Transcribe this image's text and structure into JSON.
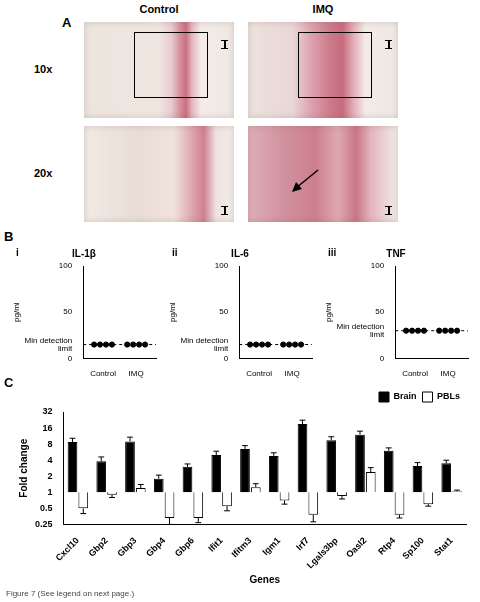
{
  "figure_label": "Figure 7 (See legend on next page.)",
  "panel_a": {
    "label": "A",
    "columns": [
      "Control",
      "IMQ"
    ],
    "rows": [
      "10x",
      "20x"
    ]
  },
  "panel_b_label": "B",
  "chart_data": [
    {
      "label": "i",
      "type": "scatter",
      "title": "IL-1β",
      "y_label": "pg/ml",
      "categories": [
        "Control",
        "IMQ"
      ],
      "values": [
        [
          15,
          15,
          15,
          15
        ],
        [
          15,
          15,
          15,
          15
        ]
      ],
      "detection_limit": {
        "value": 15,
        "label": "Min detection limit"
      },
      "line_style": "dashed",
      "marker": "circle",
      "color": "#000000",
      "ylim": [
        0,
        100
      ],
      "yticks": [
        0,
        50,
        100
      ],
      "grid": false
    },
    {
      "label": "ii",
      "type": "scatter",
      "title": "IL-6",
      "y_label": "pg/ml",
      "categories": [
        "Control",
        "IMQ"
      ],
      "values": [
        [
          15,
          15,
          15,
          15
        ],
        [
          15,
          15,
          15,
          15
        ]
      ],
      "detection_limit": {
        "value": 15,
        "label": "Min detection limit"
      },
      "line_style": "dashed",
      "marker": "circle",
      "color": "#000000",
      "ylim": [
        0,
        100
      ],
      "yticks": [
        0,
        50,
        100
      ],
      "grid": false
    },
    {
      "label": "iii",
      "type": "scatter",
      "title": "TNF",
      "y_label": "pg/ml",
      "categories": [
        "Control",
        "IMQ"
      ],
      "values": [
        [
          30,
          30,
          30,
          30
        ],
        [
          30,
          30,
          30,
          30
        ]
      ],
      "detection_limit": {
        "value": 30,
        "label": "Min detection limit"
      },
      "line_style": "dashed",
      "marker": "circle",
      "color": "#000000",
      "ylim": [
        0,
        100
      ],
      "yticks": [
        0,
        50,
        100
      ],
      "grid": false
    },
    {
      "label": "C",
      "type": "bar",
      "x_label": "Genes",
      "y_label": "Fold change",
      "categories": [
        "Cxcl10",
        "Gbp2",
        "Gbp3",
        "Gbp4",
        "Gbp6",
        "Ifit1",
        "Ifitm3",
        "Igm1",
        "Irf7",
        "Lgals3bp",
        "Oasl2",
        "Rtp4",
        "Sp100",
        "Stat1"
      ],
      "series": [
        {
          "name": "Brain",
          "color": "#000000",
          "values": [
            8.8,
            3.8,
            9,
            1.8,
            3,
            5,
            6.5,
            4.8,
            19,
            9.5,
            12,
            6,
            3.1,
            3.5
          ],
          "errors": [
            1.5,
            0.8,
            1.8,
            0.3,
            0.4,
            0.9,
            1,
            0.7,
            3.5,
            1.5,
            2,
            0.8,
            0.5,
            0.5
          ]
        },
        {
          "name": "PBLs",
          "color": "#ffffff",
          "values": [
            0.5,
            0.9,
            1.2,
            0.33,
            0.33,
            0.55,
            1.25,
            0.7,
            0.38,
            0.85,
            2.4,
            0.38,
            0.6,
            1.05
          ],
          "errors": [
            0.1,
            0.1,
            0.2,
            0.08,
            0.06,
            0.1,
            0.2,
            0.1,
            0.1,
            0.1,
            0.5,
            0.05,
            0.05,
            0.05
          ]
        }
      ],
      "base": 1,
      "log": "y",
      "ylim": [
        0.25,
        32
      ],
      "yticks": [
        0.25,
        0.5,
        1,
        2,
        4,
        8,
        16,
        32
      ],
      "legend": "top-right",
      "grid": false
    }
  ]
}
